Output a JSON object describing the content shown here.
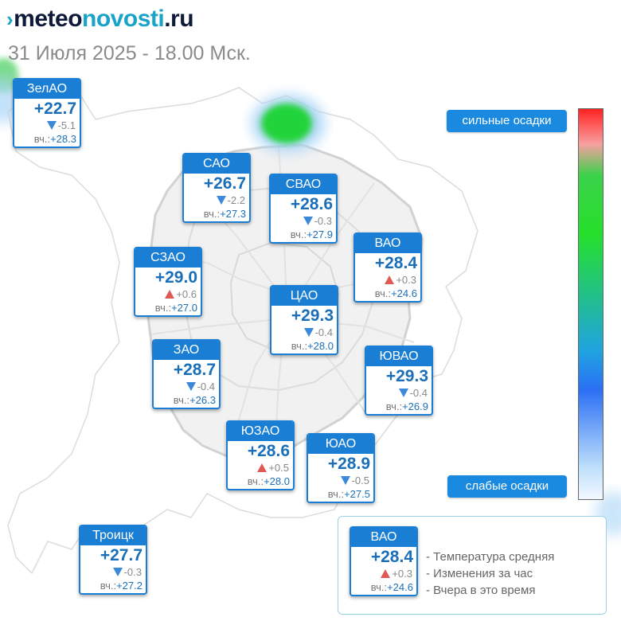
{
  "header": {
    "logo": {
      "glyph": "›",
      "part1": "meteo",
      "part2": "novosti",
      "part3": ".ru"
    },
    "date": "31 Июля 2025 - 18.00 Мск."
  },
  "districts": [
    {
      "id": "zelao",
      "name": "ЗелАО",
      "temp": "+22.7",
      "dir": "down",
      "change": "-5.1",
      "yest_label": "вч.:",
      "yest": "+28.3"
    },
    {
      "id": "sao",
      "name": "САО",
      "temp": "+26.7",
      "dir": "down",
      "change": "-2.2",
      "yest_label": "вч.:",
      "yest": "+27.3"
    },
    {
      "id": "svao",
      "name": "СВАО",
      "temp": "+28.6",
      "dir": "down",
      "change": "-0.3",
      "yest_label": "вч.:",
      "yest": "+27.9"
    },
    {
      "id": "vao",
      "name": "ВАО",
      "temp": "+28.4",
      "dir": "up",
      "change": "+0.3",
      "yest_label": "вч.:",
      "yest": "+24.6"
    },
    {
      "id": "szao",
      "name": "СЗАО",
      "temp": "+29.0",
      "dir": "up",
      "change": "+0.6",
      "yest_label": "вч.:",
      "yest": "+27.0"
    },
    {
      "id": "cao",
      "name": "ЦАО",
      "temp": "+29.3",
      "dir": "down",
      "change": "-0.4",
      "yest_label": "вч.:",
      "yest": "+28.0"
    },
    {
      "id": "zao",
      "name": "ЗАО",
      "temp": "+28.7",
      "dir": "down",
      "change": "-0.4",
      "yest_label": "вч.:",
      "yest": "+26.3"
    },
    {
      "id": "yuvao",
      "name": "ЮВАО",
      "temp": "+29.3",
      "dir": "down",
      "change": "-0.4",
      "yest_label": "вч.:",
      "yest": "+26.9"
    },
    {
      "id": "yuzao",
      "name": "ЮЗАО",
      "temp": "+28.6",
      "dir": "up",
      "change": "+0.5",
      "yest_label": "вч.:",
      "yest": "+28.0"
    },
    {
      "id": "yuao",
      "name": "ЮАО",
      "temp": "+28.9",
      "dir": "down",
      "change": "-0.5",
      "yest_label": "вч.:",
      "yest": "+27.5"
    },
    {
      "id": "troitsk",
      "name": "Троицк",
      "temp": "+27.7",
      "dir": "down",
      "change": "-0.3",
      "yest_label": "вч.:",
      "yest": "+27.2"
    }
  ],
  "precip_scale": {
    "top_label": "сильные осадки",
    "bottom_label": "слабые осадки",
    "colors": [
      "#ff2222",
      "#f7a0a0",
      "#25e02a",
      "#1fa3e0",
      "#2b6ff5",
      "#f2f8ff"
    ]
  },
  "legend": {
    "sample": {
      "name": "ВАО",
      "temp": "+28.4",
      "dir": "up",
      "change": "+0.3",
      "yest_label": "вч.:",
      "yest": "+24.6"
    },
    "lines": [
      "- Температура средняя",
      "- Изменения за час",
      "- Вчера в это время"
    ]
  },
  "colors": {
    "accent": "#1a7fd4",
    "temp": "#1a6fb8",
    "up": "#e05a55",
    "down": "#3a8ad9",
    "logo_teal": "#1aa3c9"
  }
}
